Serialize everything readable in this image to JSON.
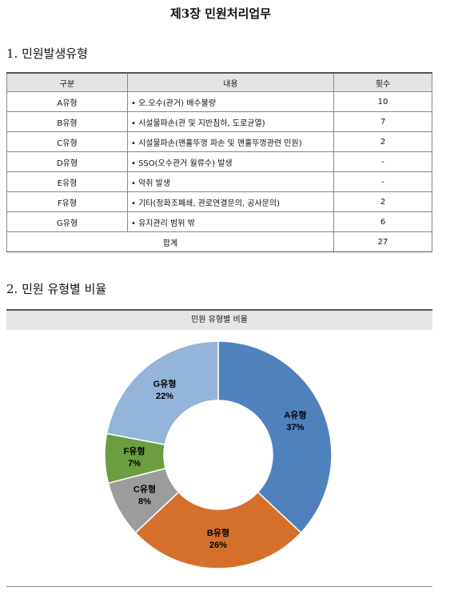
{
  "title": "제3장 민원처리업무",
  "section1": {
    "heading": "1. 민원발생유형",
    "table": {
      "header": [
        "구분",
        "내용",
        "횟수"
      ],
      "rows": [
        [
          "A유형",
          "• 오.오수(관거) 배수불량",
          10
        ],
        [
          "B유형",
          "• 시설물파손(관 및 지반침하, 도로균열)",
          7
        ],
        [
          "C유형",
          "• 시설물파손(맨홀뚜껑 파손 및 맨홀뚜껑관련 민원)",
          2
        ],
        [
          "D유형",
          "• SSO(오수관거 월류수) 발생",
          "-"
        ],
        [
          "E유형",
          "• 악취 발생",
          "-"
        ],
        [
          "F유형",
          "• 기타(정화조폐쇄, 관로연결문의, 공사문의)",
          2
        ],
        [
          "G유형",
          "• 유지관리 범위 밖",
          6
        ]
      ],
      "total": [
        "합계",
        27
      ]
    }
  },
  "section2": {
    "heading": "2. 민원 유형별 비율"
  },
  "chart_data": {
    "type": "pie",
    "title": "민원 유형별 비율",
    "donut": true,
    "categories": [
      "A유형",
      "B유형",
      "C유형",
      "F유형",
      "G유형"
    ],
    "values": [
      37,
      26,
      8,
      7,
      22
    ],
    "value_labels": [
      "37%",
      "26%",
      "8%",
      "7%",
      "22%"
    ],
    "colors": [
      "#4f81bd",
      "#d4702b",
      "#9c9c9c",
      "#6b9e3e",
      "#95b4d9"
    ]
  }
}
